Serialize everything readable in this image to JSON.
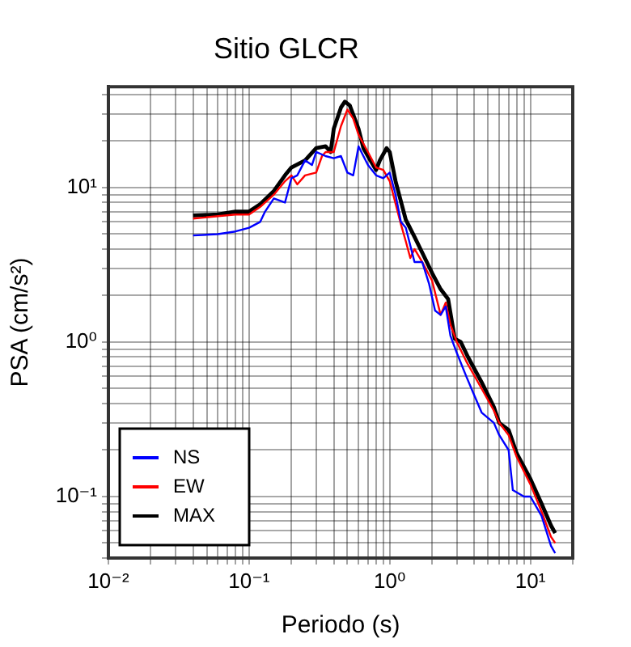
{
  "chart_data": {
    "type": "line",
    "title": "Sitio GLCR",
    "xlabel": "Periodo (s)",
    "ylabel": "PSA (cm/s²)",
    "log": "xy",
    "grid": true,
    "legend": "bottom left",
    "marker": "none",
    "line_style": "solid",
    "xlim": [
      0.01,
      20
    ],
    "ylim": [
      0.04,
      45
    ],
    "xticks": [
      {
        "value": 0.01,
        "label": "10⁻²"
      },
      {
        "value": 0.02,
        "label": null
      },
      {
        "value": 0.03,
        "label": null
      },
      {
        "value": 0.04,
        "label": null
      },
      {
        "value": 0.05,
        "label": null
      },
      {
        "value": 0.06,
        "label": null
      },
      {
        "value": 0.07,
        "label": null
      },
      {
        "value": 0.08,
        "label": null
      },
      {
        "value": 0.09,
        "label": null
      },
      {
        "value": 0.1,
        "label": "10⁻¹"
      },
      {
        "value": 0.2,
        "label": null
      },
      {
        "value": 0.3,
        "label": null
      },
      {
        "value": 0.4,
        "label": null
      },
      {
        "value": 0.5,
        "label": null
      },
      {
        "value": 0.6,
        "label": null
      },
      {
        "value": 0.7,
        "label": null
      },
      {
        "value": 0.8,
        "label": null
      },
      {
        "value": 0.9,
        "label": null
      },
      {
        "value": 1,
        "label": "10⁰"
      },
      {
        "value": 2,
        "label": null
      },
      {
        "value": 3,
        "label": null
      },
      {
        "value": 4,
        "label": null
      },
      {
        "value": 5,
        "label": null
      },
      {
        "value": 6,
        "label": null
      },
      {
        "value": 7,
        "label": null
      },
      {
        "value": 8,
        "label": null
      },
      {
        "value": 9,
        "label": null
      },
      {
        "value": 10,
        "label": "10¹"
      },
      {
        "value": 20,
        "label": null
      }
    ],
    "yticks": [
      {
        "value": 0.04,
        "label": null
      },
      {
        "value": 0.05,
        "label": null
      },
      {
        "value": 0.06,
        "label": null
      },
      {
        "value": 0.07,
        "label": null
      },
      {
        "value": 0.08,
        "label": null
      },
      {
        "value": 0.09,
        "label": null
      },
      {
        "value": 0.1,
        "label": "10⁻¹"
      },
      {
        "value": 0.2,
        "label": null
      },
      {
        "value": 0.3,
        "label": null
      },
      {
        "value": 0.4,
        "label": null
      },
      {
        "value": 0.5,
        "label": null
      },
      {
        "value": 0.6,
        "label": null
      },
      {
        "value": 0.7,
        "label": null
      },
      {
        "value": 0.8,
        "label": null
      },
      {
        "value": 0.9,
        "label": null
      },
      {
        "value": 1,
        "label": "10⁰"
      },
      {
        "value": 2,
        "label": null
      },
      {
        "value": 3,
        "label": null
      },
      {
        "value": 4,
        "label": null
      },
      {
        "value": 5,
        "label": null
      },
      {
        "value": 6,
        "label": null
      },
      {
        "value": 7,
        "label": null
      },
      {
        "value": 8,
        "label": null
      },
      {
        "value": 9,
        "label": null
      },
      {
        "value": 10,
        "label": "10¹"
      },
      {
        "value": 20,
        "label": null
      },
      {
        "value": 30,
        "label": null
      },
      {
        "value": 40,
        "label": null
      }
    ],
    "series": [
      {
        "name": "NS",
        "color": "#0000ff",
        "x": [
          0.04,
          0.06,
          0.08,
          0.1,
          0.12,
          0.13,
          0.15,
          0.18,
          0.2,
          0.22,
          0.25,
          0.28,
          0.3,
          0.35,
          0.4,
          0.45,
          0.5,
          0.55,
          0.6,
          0.65,
          0.7,
          0.8,
          0.9,
          1.0,
          1.1,
          1.2,
          1.3,
          1.5,
          1.7,
          1.9,
          2.1,
          2.3,
          2.5,
          2.7,
          3,
          3.5,
          4,
          4.5,
          5.5,
          6,
          7,
          7.5,
          9,
          10,
          12,
          14,
          15
        ],
        "values": [
          4.9,
          5.0,
          5.2,
          5.5,
          6,
          7,
          8.5,
          8,
          11.5,
          12,
          15,
          14,
          17,
          16,
          15.5,
          16,
          12.5,
          12,
          18.5,
          16,
          14,
          12,
          11.5,
          12.5,
          9,
          6,
          5.5,
          3.3,
          3.3,
          2.4,
          1.6,
          1.5,
          1.7,
          1.1,
          0.85,
          0.6,
          0.45,
          0.35,
          0.3,
          0.25,
          0.2,
          0.11,
          0.1,
          0.1,
          0.075,
          0.048,
          0.043
        ]
      },
      {
        "name": "EW",
        "color": "#ff0000",
        "x": [
          0.04,
          0.08,
          0.1,
          0.12,
          0.15,
          0.18,
          0.2,
          0.22,
          0.25,
          0.3,
          0.33,
          0.35,
          0.4,
          0.45,
          0.5,
          0.55,
          0.6,
          0.7,
          0.8,
          0.9,
          1.0,
          1.2,
          1.3,
          1.4,
          1.5,
          1.7,
          2.0,
          2.3,
          2.5,
          2.7,
          3,
          3.5,
          4.5,
          5.5,
          6,
          7,
          8,
          10,
          12,
          14,
          15
        ],
        "values": [
          6.3,
          6.7,
          6.7,
          7.5,
          9,
          11,
          12,
          10.5,
          12,
          12.5,
          16,
          17,
          17,
          25,
          32,
          28,
          22,
          17,
          13.5,
          13,
          11,
          5.8,
          4.5,
          3.5,
          4.0,
          3.3,
          2.5,
          1.5,
          1.8,
          1.3,
          1.0,
          0.75,
          0.5,
          0.36,
          0.3,
          0.25,
          0.18,
          0.12,
          0.08,
          0.055,
          0.05
        ]
      },
      {
        "name": "MAX",
        "color": "#000000",
        "x": [
          0.04,
          0.06,
          0.08,
          0.1,
          0.12,
          0.15,
          0.18,
          0.2,
          0.25,
          0.3,
          0.35,
          0.38,
          0.4,
          0.45,
          0.48,
          0.52,
          0.6,
          0.65,
          0.7,
          0.8,
          0.85,
          0.95,
          1.0,
          1.1,
          1.3,
          1.5,
          1.7,
          2.0,
          2.3,
          2.6,
          2.9,
          3.2,
          3.6,
          4.5,
          5.5,
          6,
          7,
          8,
          10,
          12,
          14,
          15
        ],
        "values": [
          6.6,
          6.7,
          7.0,
          7.0,
          7.8,
          9.5,
          12,
          13.5,
          15,
          18,
          18.5,
          17,
          24,
          33,
          36,
          34,
          24,
          18,
          16,
          13,
          15,
          18,
          17,
          11,
          6.2,
          4.8,
          3.8,
          2.8,
          2.2,
          1.9,
          1.05,
          1.0,
          0.8,
          0.55,
          0.38,
          0.3,
          0.27,
          0.19,
          0.13,
          0.09,
          0.065,
          0.058
        ]
      }
    ]
  }
}
